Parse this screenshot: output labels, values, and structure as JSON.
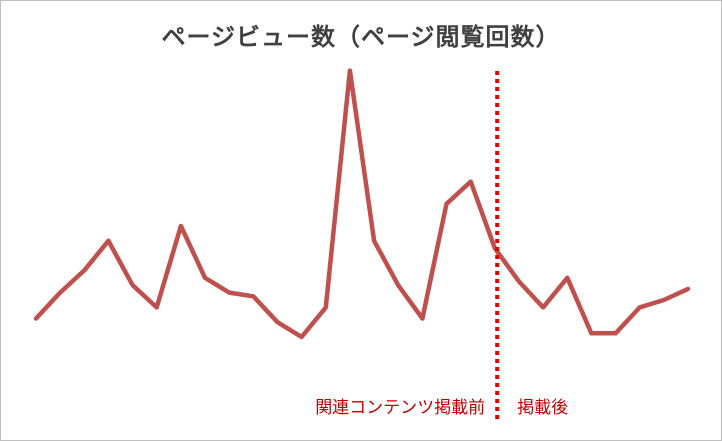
{
  "chart_data": {
    "type": "line",
    "title": "ページビュー数（ページ閲覧回数）",
    "xlabel": "",
    "ylabel": "",
    "ylim": [
      0,
      100
    ],
    "grid": false,
    "axes_visible": false,
    "x": [
      1,
      2,
      3,
      4,
      5,
      6,
      7,
      8,
      9,
      10,
      11,
      12,
      13,
      14,
      15,
      16,
      17,
      18,
      19,
      20,
      21,
      22,
      23,
      24,
      25,
      26,
      27,
      28
    ],
    "series": [
      {
        "name": "",
        "color": "#c0504d",
        "values": [
          25,
          32,
          38,
          46,
          34,
          28,
          50,
          36,
          32,
          31,
          24,
          20,
          28,
          92,
          46,
          34,
          25,
          56,
          62,
          44,
          35,
          28,
          36,
          21,
          21,
          28,
          30,
          33
        ]
      }
    ],
    "divider": {
      "after_x": 20.1,
      "color": "#e00000",
      "style": "dotted"
    },
    "annotations": [
      {
        "text": "関連コンテンツ掲載前",
        "color": "#c00000",
        "side": "left"
      },
      {
        "text": "掲載後",
        "color": "#c00000",
        "side": "right"
      }
    ]
  }
}
